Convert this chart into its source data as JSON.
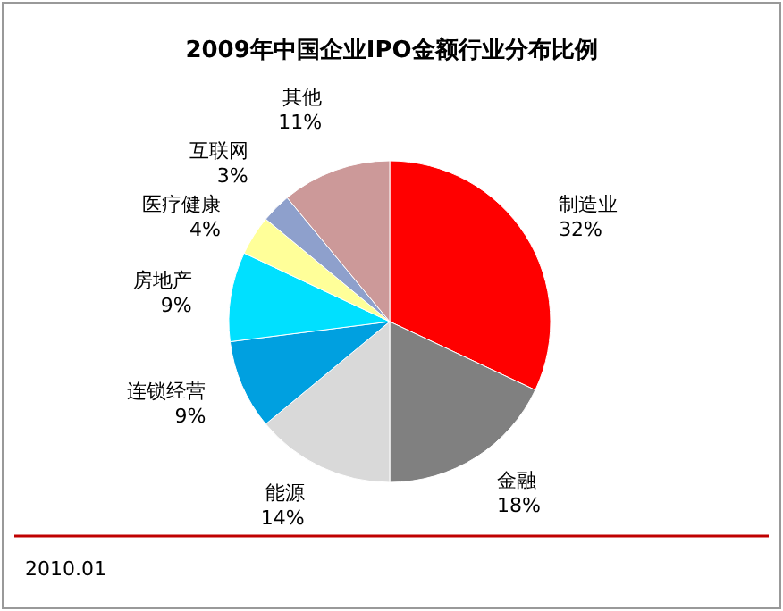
{
  "chart_data": {
    "type": "pie",
    "title": "2009年中国企业IPO金额行业分布比例",
    "categories": [
      "制造业",
      "金融",
      "能源",
      "连锁经营",
      "房地产",
      "医疗健康",
      "互联网",
      "其他"
    ],
    "values": [
      32,
      18,
      14,
      9,
      9,
      4,
      3,
      11
    ],
    "colors": [
      "#ff0000",
      "#808080",
      "#d9d9d9",
      "#00a0e0",
      "#00e0ff",
      "#ffff99",
      "#8ea0cc",
      "#cc9999"
    ],
    "value_labels": [
      "32%",
      "18%",
      "14%",
      "9%",
      "9%",
      "4%",
      "3%",
      "11%"
    ],
    "annotations": [
      "2010.01"
    ]
  }
}
